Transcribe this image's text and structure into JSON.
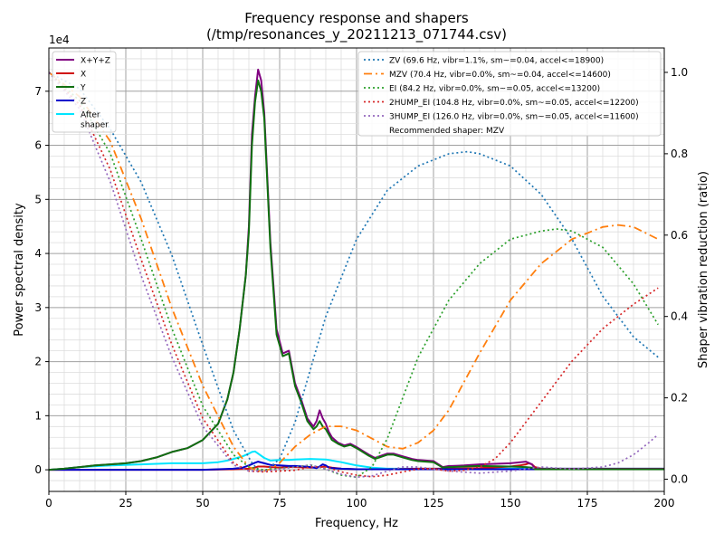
{
  "chart_data": {
    "type": "line",
    "title": "Frequency response and shapers",
    "subtitle": "(/tmp/resonances_y_20211213_071744.csv)",
    "xlabel": "Frequency, Hz",
    "ylabel": "Power spectral density",
    "ylabel_right": "Shaper vibration reduction (ratio)",
    "y_exponent_label": "1e4",
    "xlim": [
      0,
      200
    ],
    "ylim": [
      -0.4,
      7.8
    ],
    "ylim_right": [
      -0.03,
      1.06
    ],
    "x_ticks": [
      0,
      25,
      50,
      75,
      100,
      125,
      150,
      175,
      200
    ],
    "x_tick_labels": [
      "0",
      "25",
      "50",
      "75",
      "100",
      "125",
      "150",
      "175",
      "200"
    ],
    "y_ticks": [
      0,
      1,
      2,
      3,
      4,
      5,
      6,
      7
    ],
    "y_tick_labels": [
      "0",
      "1",
      "2",
      "3",
      "4",
      "5",
      "6",
      "7"
    ],
    "y_ticks_right": [
      0.0,
      0.2,
      0.4,
      0.6,
      0.8,
      1.0
    ],
    "y_tick_labels_right": [
      "0.0",
      "0.2",
      "0.4",
      "0.6",
      "0.8",
      "1.0"
    ],
    "grid": true,
    "legend_left_placement": "top-left",
    "legend_right_placement": "top-right",
    "psd_series": [
      {
        "name": "X+Y+Z",
        "color": "#800080",
        "x": [
          0,
          5,
          10,
          15,
          20,
          25,
          30,
          35,
          40,
          45,
          50,
          55,
          58,
          60,
          62,
          64,
          65,
          66,
          67,
          68,
          69,
          70,
          72,
          74,
          76,
          78,
          80,
          82,
          84,
          86,
          87,
          88,
          89,
          90,
          91,
          92,
          94,
          96,
          98,
          100,
          102,
          104,
          106,
          108,
          110,
          112,
          115,
          118,
          120,
          125,
          128,
          130,
          131,
          135,
          140,
          150,
          155,
          157,
          158,
          160,
          170,
          180,
          190,
          200
        ],
        "y": [
          0,
          0.02,
          0.05,
          0.08,
          0.1,
          0.12,
          0.16,
          0.23,
          0.33,
          0.4,
          0.55,
          0.85,
          1.3,
          1.8,
          2.6,
          3.6,
          4.5,
          6.2,
          6.9,
          7.4,
          7.2,
          6.6,
          4.2,
          2.6,
          2.15,
          2.2,
          1.6,
          1.3,
          0.95,
          0.8,
          0.9,
          1.1,
          0.95,
          0.85,
          0.7,
          0.6,
          0.5,
          0.45,
          0.48,
          0.42,
          0.35,
          0.28,
          0.22,
          0.26,
          0.3,
          0.3,
          0.25,
          0.2,
          0.18,
          0.16,
          0.05,
          0.07,
          0.07,
          0.08,
          0.1,
          0.12,
          0.15,
          0.1,
          0.02,
          0.02,
          0.02,
          0.02,
          0.02,
          0.02
        ]
      },
      {
        "name": "X",
        "color": "#d01010",
        "x": [
          0,
          50,
          60,
          65,
          67,
          68,
          70,
          72,
          75,
          78,
          80,
          85,
          88,
          90,
          92,
          95,
          100,
          110,
          120,
          125,
          130,
          140,
          150,
          153,
          155,
          156,
          157,
          158,
          160,
          170,
          180,
          190,
          200
        ],
        "y": [
          0,
          0,
          0.01,
          0.02,
          0.04,
          0.06,
          0.06,
          0.05,
          0.04,
          0.05,
          0.05,
          0.04,
          0.05,
          0.06,
          0.04,
          0.02,
          0.01,
          0.01,
          0.02,
          0.02,
          0.02,
          0.03,
          0.06,
          0.08,
          0.1,
          0.12,
          0.1,
          0.05,
          0.02,
          0.01,
          0.01,
          0.01,
          0.01
        ]
      },
      {
        "name": "Y",
        "color": "#107010",
        "x": [
          0,
          5,
          10,
          15,
          20,
          25,
          30,
          35,
          40,
          45,
          50,
          55,
          58,
          60,
          62,
          64,
          65,
          66,
          67,
          68,
          69,
          70,
          72,
          74,
          76,
          78,
          80,
          82,
          84,
          86,
          87,
          88,
          89,
          90,
          91,
          92,
          94,
          96,
          98,
          100,
          102,
          104,
          106,
          108,
          110,
          112,
          115,
          118,
          120,
          125,
          128,
          130,
          131,
          135,
          140,
          150,
          155,
          157,
          158,
          160,
          170,
          180,
          190,
          200
        ],
        "y": [
          0,
          0.02,
          0.05,
          0.08,
          0.1,
          0.12,
          0.16,
          0.23,
          0.33,
          0.4,
          0.55,
          0.85,
          1.3,
          1.8,
          2.6,
          3.6,
          4.4,
          6.0,
          6.8,
          7.2,
          7.0,
          6.5,
          4.1,
          2.5,
          2.1,
          2.15,
          1.55,
          1.25,
          0.9,
          0.75,
          0.8,
          0.9,
          0.8,
          0.75,
          0.65,
          0.55,
          0.48,
          0.43,
          0.46,
          0.4,
          0.33,
          0.26,
          0.2,
          0.24,
          0.28,
          0.28,
          0.23,
          0.18,
          0.16,
          0.14,
          0.04,
          0.05,
          0.05,
          0.06,
          0.07,
          0.06,
          0.05,
          0.04,
          0.01,
          0.01,
          0.01,
          0.01,
          0.01,
          0.01
        ]
      },
      {
        "name": "Z",
        "color": "#0000cc",
        "x": [
          0,
          50,
          60,
          63,
          65,
          67,
          68,
          70,
          72,
          75,
          78,
          80,
          83,
          85,
          87,
          88,
          89,
          90,
          91,
          92,
          95,
          100,
          110,
          120,
          130,
          140,
          150,
          160,
          170,
          180,
          190,
          200
        ],
        "y": [
          0,
          0,
          0.02,
          0.04,
          0.08,
          0.13,
          0.15,
          0.12,
          0.09,
          0.08,
          0.07,
          0.07,
          0.06,
          0.05,
          0.03,
          0.06,
          0.1,
          0.08,
          0.04,
          0.03,
          0.02,
          0.01,
          0.01,
          0.01,
          0.01,
          0.01,
          0.01,
          0.01,
          0.01,
          0.01,
          0.01,
          0.01
        ]
      },
      {
        "name": "After\nshaper",
        "color": "#00e5ff",
        "x": [
          0,
          5,
          10,
          20,
          30,
          40,
          50,
          55,
          58,
          60,
          63,
          65,
          66,
          67,
          68,
          70,
          72,
          75,
          78,
          80,
          85,
          90,
          95,
          100,
          105,
          110,
          120,
          130,
          140,
          150,
          160,
          170,
          180,
          190,
          200
        ],
        "y": [
          0,
          0.02,
          0.05,
          0.08,
          0.1,
          0.12,
          0.12,
          0.14,
          0.17,
          0.2,
          0.25,
          0.3,
          0.33,
          0.34,
          0.3,
          0.22,
          0.17,
          0.18,
          0.18,
          0.19,
          0.2,
          0.19,
          0.14,
          0.08,
          0.04,
          0.02,
          0.02,
          0.02,
          0.02,
          0.02,
          0.02,
          0.02,
          0.02,
          0.02,
          0.02
        ]
      }
    ],
    "shaper_series": [
      {
        "name": "ZV (69.6 Hz, vibr=1.1%, sm~=0.04, accel<=18900)",
        "color": "#1f77b4",
        "dash": "dotted",
        "x": [
          0,
          10,
          20,
          30,
          40,
          50,
          60,
          66,
          68,
          70,
          72,
          75,
          80,
          90,
          100,
          110,
          120,
          130,
          136,
          140,
          150,
          160,
          170,
          180,
          190,
          198
        ],
        "y": [
          1.0,
          0.96,
          0.86,
          0.73,
          0.55,
          0.33,
          0.12,
          0.04,
          0.023,
          0.02,
          0.03,
          0.05,
          0.14,
          0.4,
          0.59,
          0.71,
          0.77,
          0.8,
          0.805,
          0.8,
          0.77,
          0.7,
          0.59,
          0.45,
          0.35,
          0.3
        ]
      },
      {
        "name": "MZV (70.4 Hz, vibr=0.0%, sm~=0.04, accel<=14600)",
        "color": "#ff7f0e",
        "dash": "dashdot",
        "x": [
          0,
          10,
          20,
          30,
          40,
          50,
          60,
          65,
          68,
          70,
          72,
          75,
          80,
          85,
          90,
          95,
          100,
          105,
          110,
          115,
          120,
          125,
          130,
          140,
          150,
          160,
          170,
          180,
          185,
          190,
          198
        ],
        "y": [
          1.0,
          0.94,
          0.83,
          0.64,
          0.42,
          0.23,
          0.08,
          0.03,
          0.02,
          0.02,
          0.025,
          0.04,
          0.08,
          0.11,
          0.13,
          0.13,
          0.12,
          0.1,
          0.08,
          0.075,
          0.09,
          0.12,
          0.17,
          0.31,
          0.44,
          0.53,
          0.59,
          0.62,
          0.625,
          0.62,
          0.59
        ]
      },
      {
        "name": "EI (84.2 Hz, vibr=0.0%, sm~=0.05, accel<=13200)",
        "color": "#2ca02c",
        "dash": "dotted",
        "x": [
          0,
          10,
          20,
          30,
          40,
          50,
          60,
          65,
          70,
          75,
          80,
          85,
          90,
          95,
          100,
          105,
          110,
          115,
          120,
          130,
          140,
          150,
          160,
          165,
          170,
          180,
          190,
          198
        ],
        "y": [
          1.0,
          0.93,
          0.8,
          0.59,
          0.37,
          0.18,
          0.06,
          0.03,
          0.023,
          0.027,
          0.03,
          0.035,
          0.025,
          0.01,
          0.005,
          0.03,
          0.1,
          0.2,
          0.3,
          0.44,
          0.53,
          0.59,
          0.61,
          0.615,
          0.61,
          0.57,
          0.48,
          0.38
        ]
      },
      {
        "name": "2HUMP_EI (104.8 Hz, vibr=0.0%, sm~=0.05, accel<=12200)",
        "color": "#d62728",
        "dash": "dotted",
        "x": [
          0,
          10,
          20,
          30,
          40,
          50,
          60,
          65,
          70,
          75,
          80,
          85,
          90,
          95,
          100,
          105,
          110,
          115,
          120,
          125,
          130,
          135,
          140,
          145,
          150,
          160,
          170,
          180,
          190,
          198
        ],
        "y": [
          1.0,
          0.92,
          0.76,
          0.54,
          0.33,
          0.15,
          0.04,
          0.02,
          0.018,
          0.02,
          0.022,
          0.03,
          0.03,
          0.018,
          0.01,
          0.006,
          0.01,
          0.018,
          0.025,
          0.025,
          0.02,
          0.022,
          0.03,
          0.05,
          0.09,
          0.19,
          0.29,
          0.37,
          0.43,
          0.47
        ]
      },
      {
        "name": "3HUMP_EI (126.0 Hz, vibr=0.0%, sm~=0.05, accel<=11600)",
        "color": "#9467bd",
        "dash": "dotted",
        "x": [
          0,
          10,
          20,
          30,
          40,
          50,
          60,
          65,
          70,
          75,
          80,
          85,
          90,
          95,
          100,
          105,
          110,
          115,
          120,
          130,
          140,
          150,
          160,
          170,
          180,
          185,
          190,
          195,
          198
        ],
        "y": [
          1.0,
          0.91,
          0.73,
          0.5,
          0.3,
          0.13,
          0.035,
          0.02,
          0.02,
          0.025,
          0.03,
          0.035,
          0.025,
          0.012,
          0.005,
          0.008,
          0.02,
          0.03,
          0.03,
          0.02,
          0.015,
          0.02,
          0.03,
          0.025,
          0.03,
          0.04,
          0.06,
          0.09,
          0.11
        ]
      }
    ],
    "recommended_text": "Recommended shaper: MZV"
  }
}
